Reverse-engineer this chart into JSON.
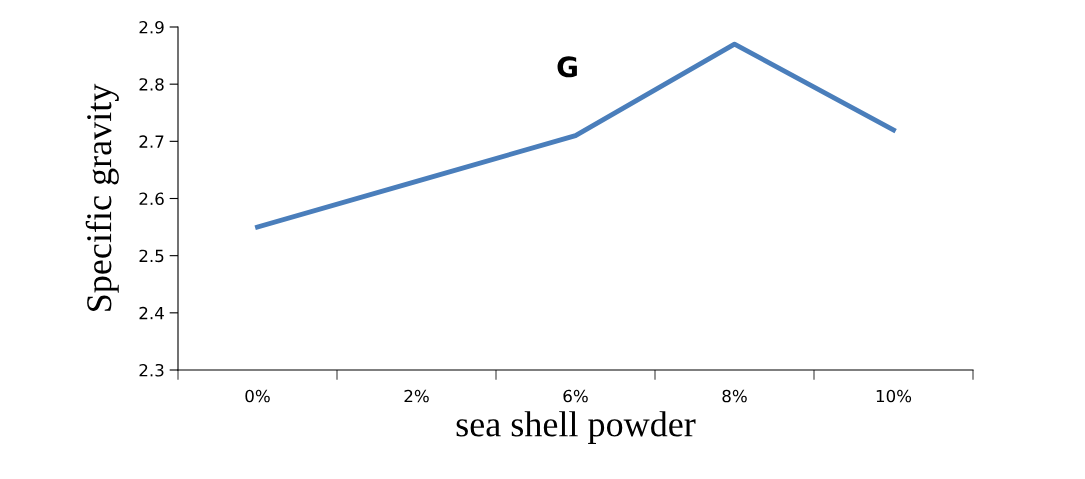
{
  "chart_data": {
    "type": "line",
    "title": "G",
    "xlabel": "sea shell powder",
    "ylabel": "Specific gravity",
    "categories": [
      "0%",
      "2%",
      "6%",
      "8%",
      "10%"
    ],
    "series": [
      {
        "color": "#4a7ebb",
        "values": [
          2.55,
          2.63,
          2.71,
          2.87,
          2.72
        ]
      }
    ],
    "ylim": [
      2.3,
      2.9
    ],
    "yticks": [
      2.3,
      2.4,
      2.5,
      2.6,
      2.7,
      2.8,
      2.9
    ],
    "grid": false,
    "legend": false,
    "marker": "none",
    "line_style": "solid"
  }
}
